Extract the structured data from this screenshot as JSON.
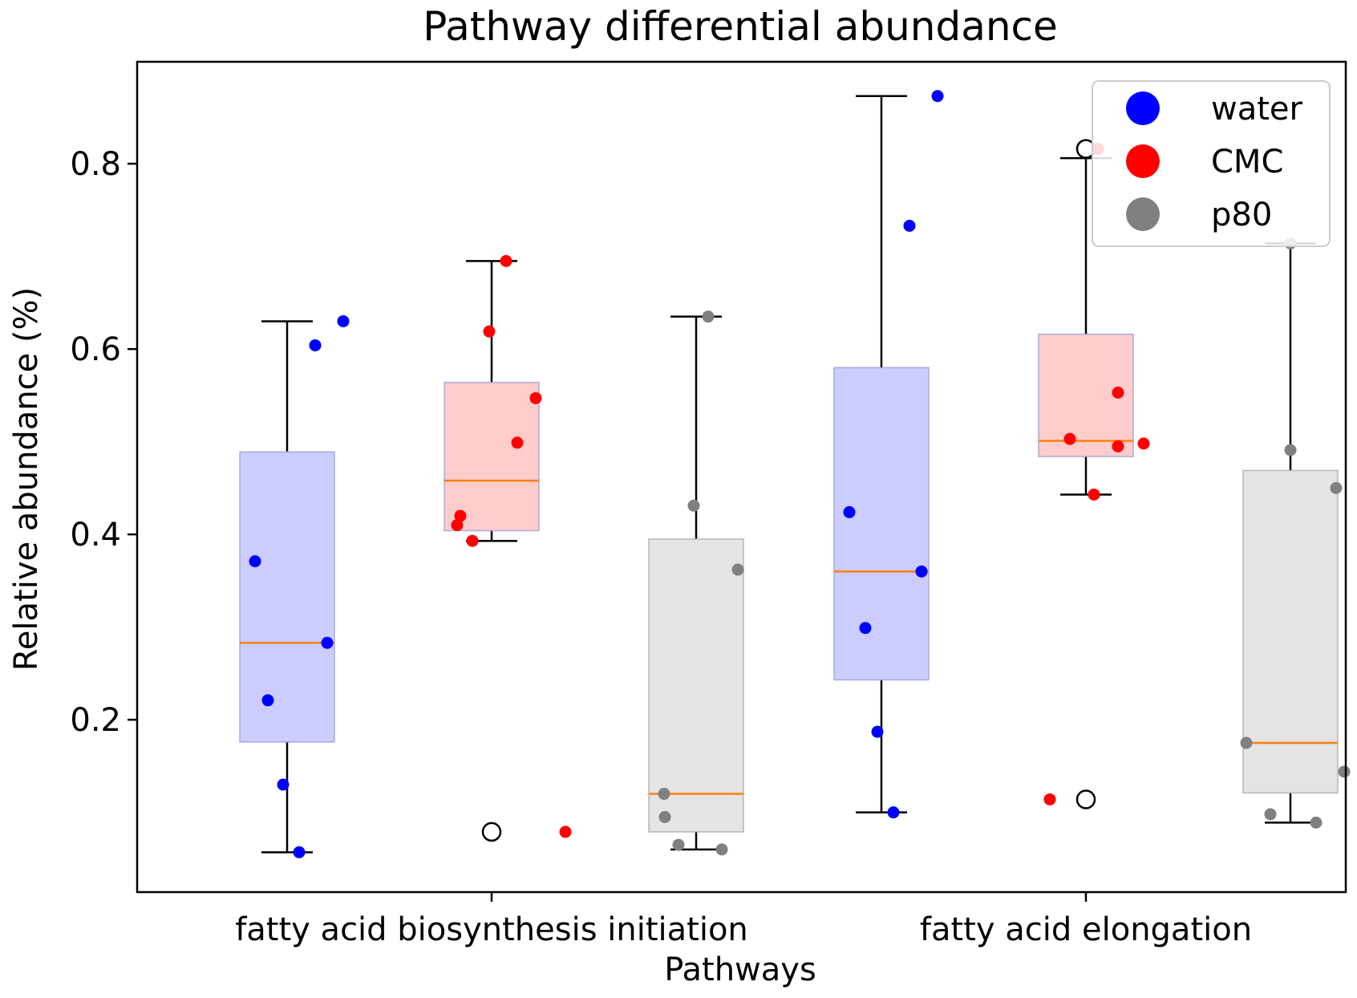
{
  "chart_data": {
    "type": "box",
    "title": "Pathway differential abundance",
    "xlabel": "Pathways",
    "ylabel": "Relative abundance (%)",
    "ylim": [
      0.014,
      0.91
    ],
    "yticks": [
      0.2,
      0.4,
      0.6,
      0.8
    ],
    "ytick_labels": [
      "0.2",
      "0.4",
      "0.6",
      "0.8"
    ],
    "categories": [
      "fatty acid biosynthesis initiation",
      "fatty acid elongation"
    ],
    "legend": {
      "position": "top-right",
      "entries": [
        {
          "label": "water",
          "color": "#0000ff"
        },
        {
          "label": "CMC",
          "color": "#ff0000"
        },
        {
          "label": "p80",
          "color": "#808080"
        }
      ]
    },
    "series": [
      {
        "name": "water",
        "color": "#0000ff",
        "box_fill": "#ccccff",
        "boxes": [
          {
            "q1": 0.176,
            "median": 0.283,
            "q3": 0.489,
            "whislo": 0.057,
            "whishi": 0.63,
            "fliers": [],
            "points": [
              0.63,
              0.604,
              0.371,
              0.283,
              0.221,
              0.13,
              0.057
            ]
          },
          {
            "q1": 0.243,
            "median": 0.36,
            "q3": 0.58,
            "whislo": 0.1,
            "whishi": 0.873,
            "fliers": [],
            "points": [
              0.873,
              0.733,
              0.424,
              0.36,
              0.299,
              0.187,
              0.1
            ]
          }
        ]
      },
      {
        "name": "CMC",
        "color": "#ff0000",
        "box_fill": "#ffcccc",
        "boxes": [
          {
            "q1": 0.404,
            "median": 0.458,
            "q3": 0.564,
            "whislo": 0.393,
            "whishi": 0.695,
            "fliers": [
              0.079
            ],
            "points": [
              0.695,
              0.619,
              0.547,
              0.499,
              0.42,
              0.41,
              0.393,
              0.079
            ]
          },
          {
            "q1": 0.484,
            "median": 0.501,
            "q3": 0.616,
            "whislo": 0.443,
            "whishi": 0.806,
            "fliers": [
              0.816,
              0.114
            ],
            "points": [
              0.816,
              0.553,
              0.503,
              0.498,
              0.495,
              0.443,
              0.114
            ]
          }
        ]
      },
      {
        "name": "p80",
        "color": "#808080",
        "box_fill": "#e4e4e4",
        "boxes": [
          {
            "q1": 0.079,
            "median": 0.12,
            "q3": 0.395,
            "whislo": 0.06,
            "whishi": 0.635,
            "fliers": [],
            "points": [
              0.635,
              0.431,
              0.362,
              0.12,
              0.095,
              0.065,
              0.06
            ]
          },
          {
            "q1": 0.121,
            "median": 0.175,
            "q3": 0.469,
            "whislo": 0.089,
            "whishi": 0.714,
            "fliers": [],
            "points": [
              0.714,
              0.491,
              0.45,
              0.175,
              0.144,
              0.098,
              0.089
            ]
          }
        ]
      }
    ]
  }
}
